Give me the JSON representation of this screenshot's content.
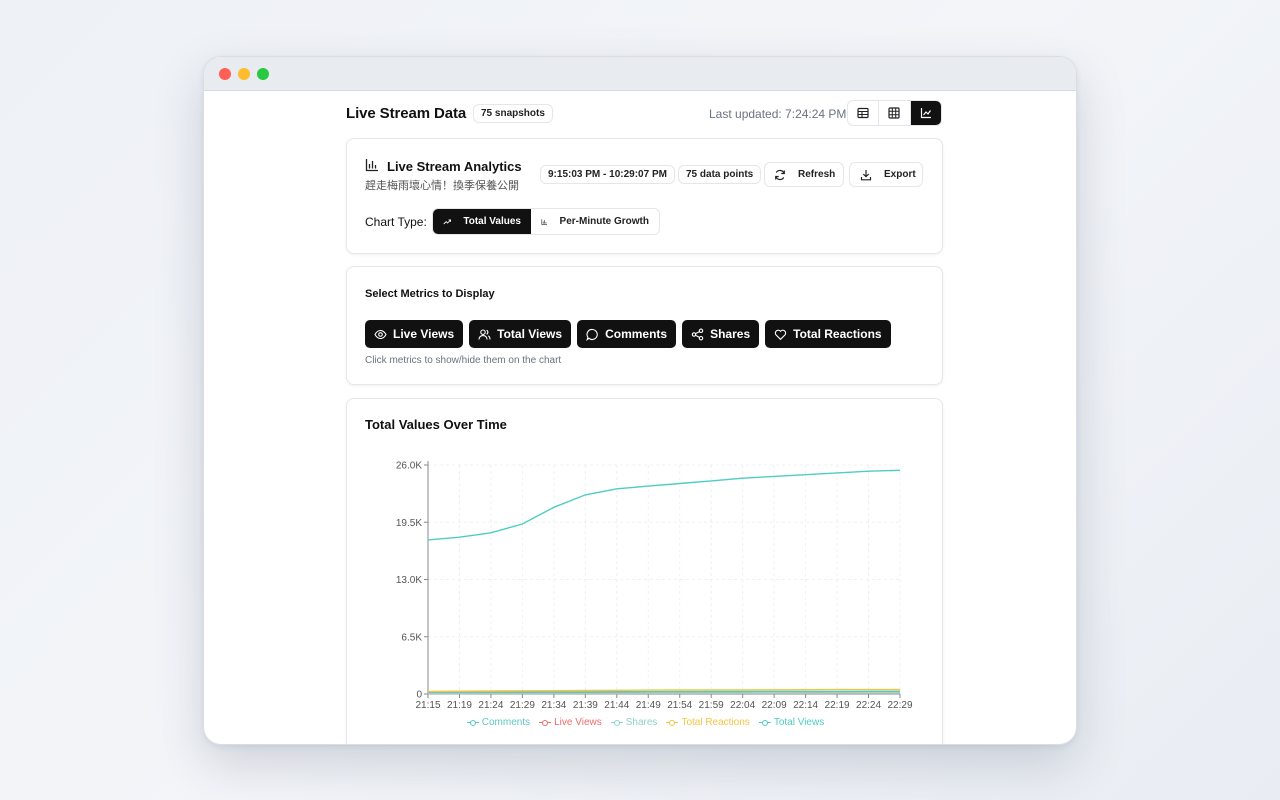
{
  "header": {
    "title": "Live Stream Data",
    "snapshot_badge": "75 snapshots",
    "last_updated": "Last updated: 7:24:24 PM",
    "view_modes": [
      "table-icon",
      "grid-icon",
      "chart-icon"
    ],
    "active_view": "chart-icon"
  },
  "analytics": {
    "title": "Live Stream Analytics",
    "subtitle": "趕走梅雨壞心情！換季保養公開",
    "time_range": "9:15:03 PM - 10:29:07 PM",
    "data_points": "75 data points",
    "refresh_label": "Refresh",
    "export_label": "Export",
    "chart_type_label": "Chart Type:",
    "chart_types": [
      "Total Values",
      "Per-Minute Growth"
    ],
    "active_chart_type": "Total Values"
  },
  "metrics": {
    "title": "Select Metrics to Display",
    "buttons": [
      "Live Views",
      "Total Views",
      "Comments",
      "Shares",
      "Total Reactions"
    ],
    "hint": "Click metrics to show/hide them on the chart"
  },
  "chart": {
    "title": "Total Values Over Time"
  },
  "chart_data": {
    "type": "line",
    "title": "Total Values Over Time",
    "xlabel": "",
    "ylabel": "",
    "grid": true,
    "legend": "bottom",
    "x": [
      "21:15",
      "21:19",
      "21:24",
      "21:29",
      "21:34",
      "21:39",
      "21:44",
      "21:49",
      "21:54",
      "21:59",
      "22:04",
      "22:09",
      "22:14",
      "22:19",
      "22:24",
      "22:29"
    ],
    "yticks": [
      "0",
      "6.5K",
      "13.0K",
      "19.5K",
      "26.0K"
    ],
    "ylim": [
      0,
      26000
    ],
    "series": [
      {
        "name": "Comments",
        "color": "#5cc8c0",
        "values": [
          200,
          210,
          220,
          230,
          240,
          250,
          260,
          270,
          275,
          280,
          285,
          290,
          295,
          300,
          305,
          310
        ]
      },
      {
        "name": "Live Views",
        "color": "#f26b6b",
        "values": [
          80,
          85,
          90,
          90,
          95,
          95,
          100,
          100,
          100,
          105,
          105,
          105,
          110,
          110,
          110,
          110
        ]
      },
      {
        "name": "Shares",
        "color": "#8fd3c7",
        "values": [
          60,
          62,
          64,
          66,
          68,
          70,
          72,
          74,
          76,
          78,
          80,
          82,
          84,
          86,
          88,
          90
        ]
      },
      {
        "name": "Total Reactions",
        "color": "#f5c542",
        "values": [
          300,
          320,
          340,
          360,
          380,
          400,
          420,
          440,
          450,
          460,
          470,
          480,
          490,
          500,
          505,
          510
        ]
      },
      {
        "name": "Total Views",
        "color": "#4ecdc4",
        "values": [
          17500,
          17800,
          18300,
          19300,
          21200,
          22600,
          23300,
          23600,
          23900,
          24200,
          24500,
          24700,
          24900,
          25100,
          25300,
          25400
        ]
      }
    ]
  }
}
